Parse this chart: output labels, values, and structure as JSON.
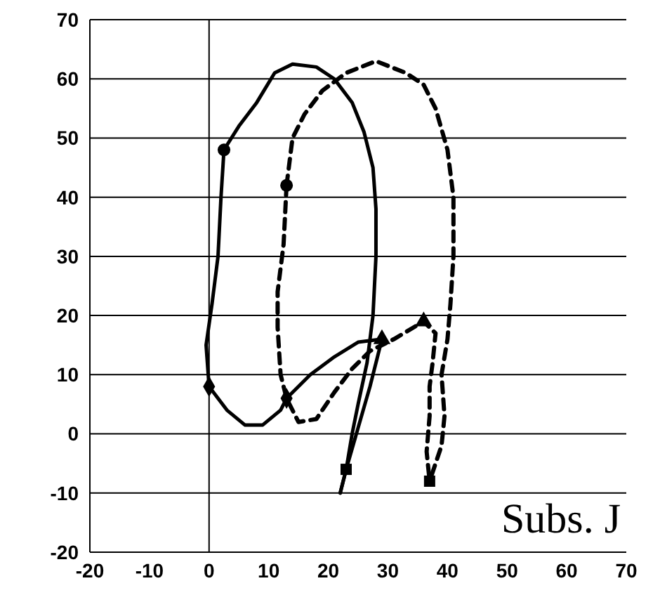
{
  "chart_data": {
    "type": "line",
    "annotations": [
      "Subs. J"
    ],
    "xlim": [
      -20,
      70
    ],
    "xticks": [
      -20,
      -10,
      0,
      10,
      20,
      30,
      40,
      50,
      60,
      70
    ],
    "ylim": [
      -20,
      70
    ],
    "yticks": [
      -20,
      -10,
      0,
      10,
      20,
      30,
      40,
      50,
      60,
      70
    ],
    "grid": "y",
    "ref_lines": [
      {
        "axis": "x",
        "value": 0,
        "color": "#000000"
      }
    ],
    "series": [
      {
        "color": "#000000",
        "line_style": "solid",
        "marker": "none",
        "x": [
          2.5,
          5,
          8,
          11,
          14,
          18,
          21,
          24,
          26,
          27.5,
          28,
          28,
          27.5,
          26.5,
          25,
          24,
          23,
          22
        ],
        "values": [
          48,
          52,
          56,
          61,
          62.5,
          62,
          60,
          56,
          51,
          45,
          38,
          30,
          20,
          12,
          5,
          0,
          -6,
          -10
        ]
      },
      {
        "color": "#000000",
        "line_style": "solid",
        "marker": "none",
        "x": [
          2.5,
          2,
          1.5,
          0.5,
          -0.5,
          0,
          3,
          6,
          9,
          12,
          13,
          17,
          21,
          25,
          29,
          27,
          25,
          23,
          22
        ],
        "values": [
          48,
          40,
          30,
          22,
          15,
          8,
          4,
          1.5,
          1.5,
          4,
          6,
          10,
          13,
          15.5,
          16,
          8,
          1,
          -6,
          -10
        ]
      },
      {
        "color": "#000000",
        "line_style": "dashed",
        "marker": "none",
        "x": [
          13,
          14,
          16,
          19,
          23,
          28,
          33,
          36,
          38,
          40,
          41,
          41,
          40.5,
          40,
          39,
          39.5,
          39,
          37
        ],
        "values": [
          42,
          50,
          54,
          58,
          61,
          63,
          61,
          59,
          55,
          48,
          40,
          30,
          22,
          16,
          10,
          3,
          -2,
          -8
        ]
      },
      {
        "color": "#000000",
        "line_style": "dashed",
        "marker": "none",
        "x": [
          13,
          12.5,
          11.5,
          11.5,
          12,
          13,
          15,
          18,
          21,
          24,
          27,
          31,
          36,
          38,
          37.5,
          37,
          37,
          36.5,
          37
        ],
        "values": [
          42,
          32,
          24,
          18,
          10,
          6,
          2,
          2.5,
          7,
          11,
          14,
          16,
          19,
          17,
          12,
          8,
          3,
          -3,
          -8
        ]
      },
      {
        "type": "scatter",
        "color": "#000000",
        "marker": "circle",
        "x": [
          2.5,
          13
        ],
        "values": [
          48,
          42
        ]
      },
      {
        "type": "scatter",
        "color": "#000000",
        "marker": "diamond",
        "x": [
          0,
          13
        ],
        "values": [
          8,
          6
        ]
      },
      {
        "type": "scatter",
        "color": "#000000",
        "marker": "triangle",
        "x": [
          29,
          36
        ],
        "values": [
          16,
          19
        ]
      },
      {
        "type": "scatter",
        "color": "#000000",
        "marker": "square",
        "x": [
          23,
          37
        ],
        "values": [
          -6,
          -8
        ]
      }
    ]
  }
}
